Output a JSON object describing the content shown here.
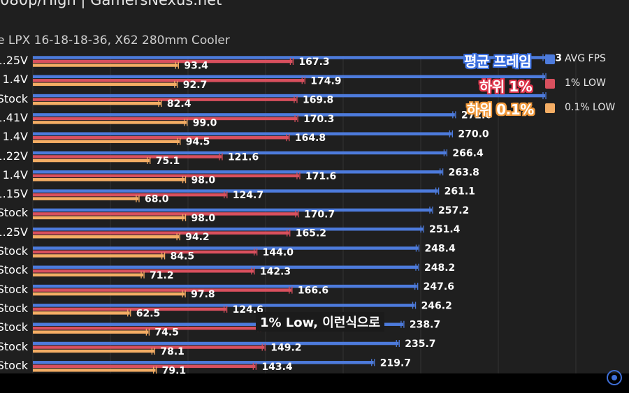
{
  "header": {
    "title": "080p/High | GamersNexus.net",
    "subtitle": "e LPX 16-18-18-36, X62 280mm Cooler"
  },
  "legend": [
    {
      "label": "AVG FPS",
      "color": "#4d7bdc",
      "korean": "평균 프레임",
      "korean_color": "#3b6fe0"
    },
    {
      "label": "1% LOW",
      "color": "#d9505e",
      "korean": "하위 1%",
      "korean_color": "#e0354c"
    },
    {
      "label": "0.1% LOW",
      "color": "#f4ad64",
      "korean": "하위 0.1%",
      "korean_color": "#f29a3c"
    }
  ],
  "caption": "1% Low, 이런식으로",
  "colors": {
    "avg": "#4d7bdc",
    "low1": "#d9505e",
    "low01": "#f4ad64",
    "background": "#1f1f1f"
  },
  "chart_data": {
    "type": "bar",
    "orientation": "horizontal",
    "grid": true,
    "legend_position": "top-right",
    "categories": [
      "1.25V",
      "1.4V",
      "Stock",
      "1.41V",
      "1.4V",
      "1.22V",
      "1.4V",
      "1.15V",
      "Stock",
      "1.25V",
      "Stock",
      "Stock",
      "Stock",
      "Stock",
      "Stock",
      "Stock",
      "Stock"
    ],
    "series": [
      {
        "name": "AVG FPS",
        "values": [
          null,
          null,
          null,
          272.0,
          270.0,
          266.4,
          263.8,
          261.1,
          257.2,
          251.4,
          248.4,
          248.2,
          247.6,
          246.2,
          238.7,
          235.7,
          219.7
        ],
        "labels": [
          ".3",
          "",
          "",
          "272.0",
          "270.0",
          "266.4",
          "263.8",
          "261.1",
          "257.2",
          "251.4",
          "248.4",
          "248.2",
          "247.6",
          "246.2",
          "238.7",
          "235.7",
          "219.7"
        ]
      },
      {
        "name": "1% LOW",
        "values": [
          167.3,
          174.9,
          169.8,
          170.3,
          164.8,
          121.6,
          171.6,
          124.7,
          170.7,
          165.2,
          144.0,
          142.3,
          166.6,
          124.6,
          146.4,
          149.2,
          143.4
        ],
        "labels": [
          "167.3",
          "174.9",
          "169.8",
          "170.3",
          "164.8",
          "121.6",
          "171.6",
          "124.7",
          "170.7",
          "165.2",
          "144.0",
          "142.3",
          "166.6",
          "124.6",
          "146.4",
          "149.2",
          "143.4"
        ]
      },
      {
        "name": "0.1% LOW",
        "values": [
          93.4,
          92.7,
          82.4,
          99.0,
          94.5,
          75.1,
          98.0,
          68.0,
          98.0,
          94.2,
          84.5,
          71.2,
          97.8,
          62.5,
          74.5,
          78.1,
          79.1
        ],
        "labels": [
          "93.4",
          "92.7",
          "82.4",
          "99.0",
          "94.5",
          "75.1",
          "98.0",
          "68.0",
          "98.0",
          "94.2",
          "84.5",
          "71.2",
          "97.8",
          "62.5",
          "74.5",
          "78.1",
          "79.1"
        ]
      }
    ]
  }
}
